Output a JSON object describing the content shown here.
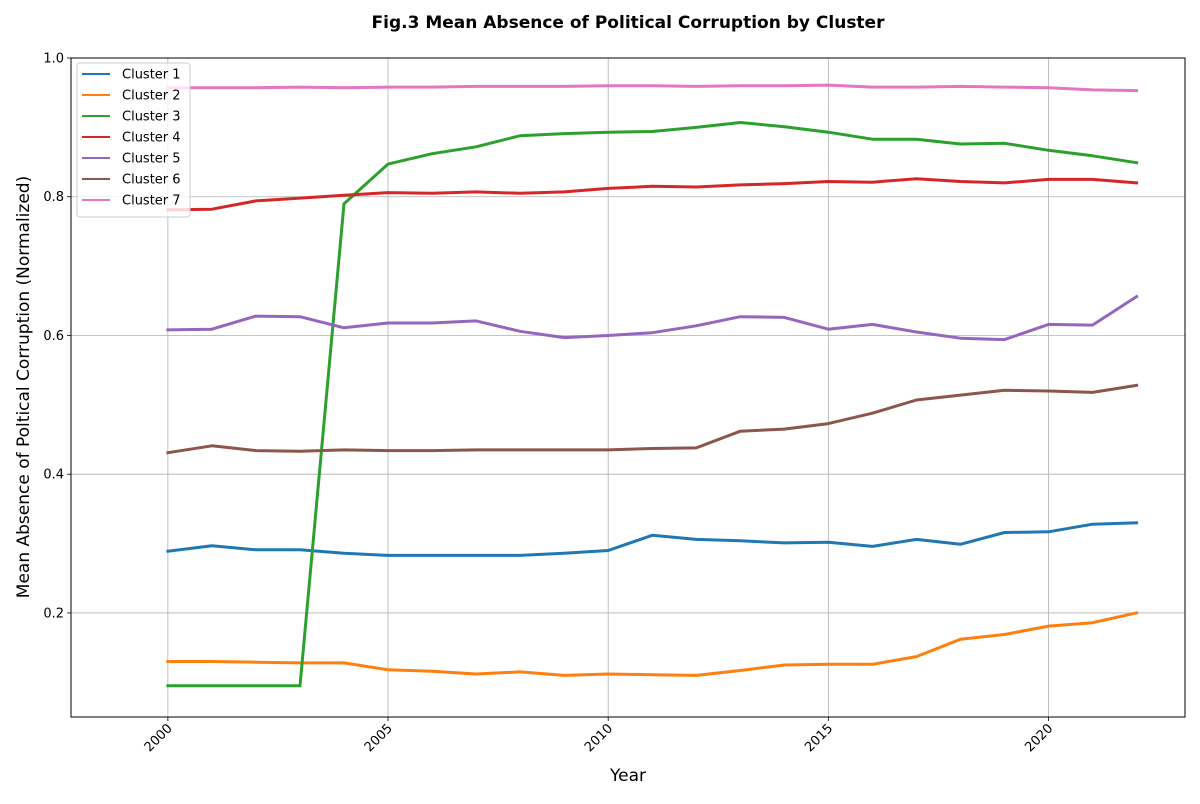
{
  "chart_data": {
    "type": "line",
    "title": "Fig.3 Mean Absence of Political Corruption by Cluster",
    "xlabel": "Year",
    "ylabel": "Mean Absence of Poltical Corruption (Normalized)",
    "xlim": [
      1997.8,
      2023.1
    ],
    "ylim": [
      0.05,
      1.0
    ],
    "xticks": [
      2000,
      2005,
      2010,
      2015,
      2020
    ],
    "yticks": [
      0.2,
      0.4,
      0.6,
      0.8,
      1.0
    ],
    "ytick_labels": [
      "0.2",
      "0.4",
      "0.6",
      "0.8",
      "1.0"
    ],
    "grid": true,
    "legend_position": "top-left",
    "x": [
      2000,
      2001,
      2002,
      2003,
      2004,
      2005,
      2006,
      2007,
      2008,
      2009,
      2010,
      2011,
      2012,
      2013,
      2014,
      2015,
      2016,
      2017,
      2018,
      2019,
      2020,
      2021,
      2022
    ],
    "series": [
      {
        "name": "Cluster 1",
        "color": "#1f77b4",
        "values": [
          0.289,
          0.297,
          0.291,
          0.291,
          0.286,
          0.283,
          0.283,
          0.283,
          0.283,
          0.286,
          0.29,
          0.312,
          0.306,
          0.304,
          0.301,
          0.302,
          0.296,
          0.306,
          0.299,
          0.316,
          0.317,
          0.328,
          0.33
        ]
      },
      {
        "name": "Cluster 2",
        "color": "#ff7f0e",
        "values": [
          0.13,
          0.13,
          0.129,
          0.128,
          0.128,
          0.118,
          0.116,
          0.112,
          0.115,
          0.11,
          0.112,
          0.111,
          0.11,
          0.117,
          0.125,
          0.126,
          0.126,
          0.137,
          0.162,
          0.169,
          0.181,
          0.186,
          0.2
        ]
      },
      {
        "name": "Cluster 3",
        "color": "#2ca02c",
        "values": [
          0.095,
          0.095,
          0.095,
          0.095,
          0.79,
          0.847,
          0.862,
          0.872,
          0.888,
          0.891,
          0.893,
          0.894,
          0.9,
          0.907,
          0.901,
          0.893,
          0.883,
          0.883,
          0.876,
          0.877,
          0.867,
          0.859,
          0.849
        ]
      },
      {
        "name": "Cluster 4",
        "color": "#d62728",
        "values": [
          0.781,
          0.782,
          0.794,
          0.798,
          0.802,
          0.806,
          0.805,
          0.807,
          0.805,
          0.807,
          0.812,
          0.815,
          0.814,
          0.817,
          0.819,
          0.822,
          0.821,
          0.826,
          0.822,
          0.82,
          0.825,
          0.825,
          0.82
        ]
      },
      {
        "name": "Cluster 5",
        "color": "#9467bd",
        "values": [
          0.608,
          0.609,
          0.628,
          0.627,
          0.611,
          0.618,
          0.618,
          0.621,
          0.606,
          0.597,
          0.6,
          0.604,
          0.614,
          0.627,
          0.626,
          0.609,
          0.616,
          0.605,
          0.596,
          0.594,
          0.616,
          0.615,
          0.656
        ]
      },
      {
        "name": "Cluster 6",
        "color": "#8c564b",
        "values": [
          0.431,
          0.441,
          0.434,
          0.433,
          0.435,
          0.434,
          0.434,
          0.435,
          0.435,
          0.435,
          0.435,
          0.437,
          0.438,
          0.462,
          0.465,
          0.473,
          0.488,
          0.507,
          0.514,
          0.521,
          0.52,
          0.518,
          0.528
        ]
      },
      {
        "name": "Cluster 7",
        "color": "#e377c2",
        "values": [
          0.957,
          0.957,
          0.957,
          0.958,
          0.957,
          0.958,
          0.958,
          0.959,
          0.959,
          0.959,
          0.96,
          0.96,
          0.959,
          0.96,
          0.96,
          0.961,
          0.958,
          0.958,
          0.959,
          0.958,
          0.957,
          0.954,
          0.953
        ]
      }
    ]
  }
}
